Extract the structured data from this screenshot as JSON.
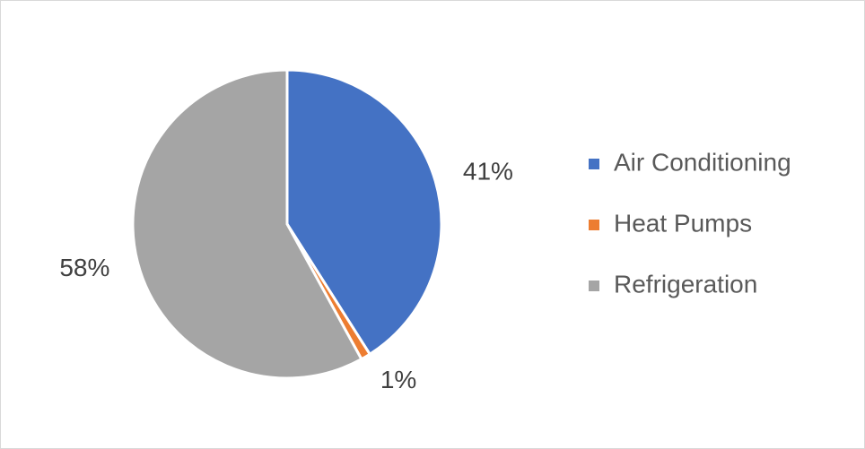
{
  "chart_data": {
    "type": "pie",
    "categories": [
      "Air Conditioning",
      "Heat Pumps",
      "Refrigeration"
    ],
    "values": [
      41,
      1,
      58
    ],
    "value_labels": [
      "41%",
      "1%",
      "58%"
    ],
    "colors": [
      "#4472c4",
      "#ed7d31",
      "#a5a5a5"
    ],
    "legend": "right"
  }
}
